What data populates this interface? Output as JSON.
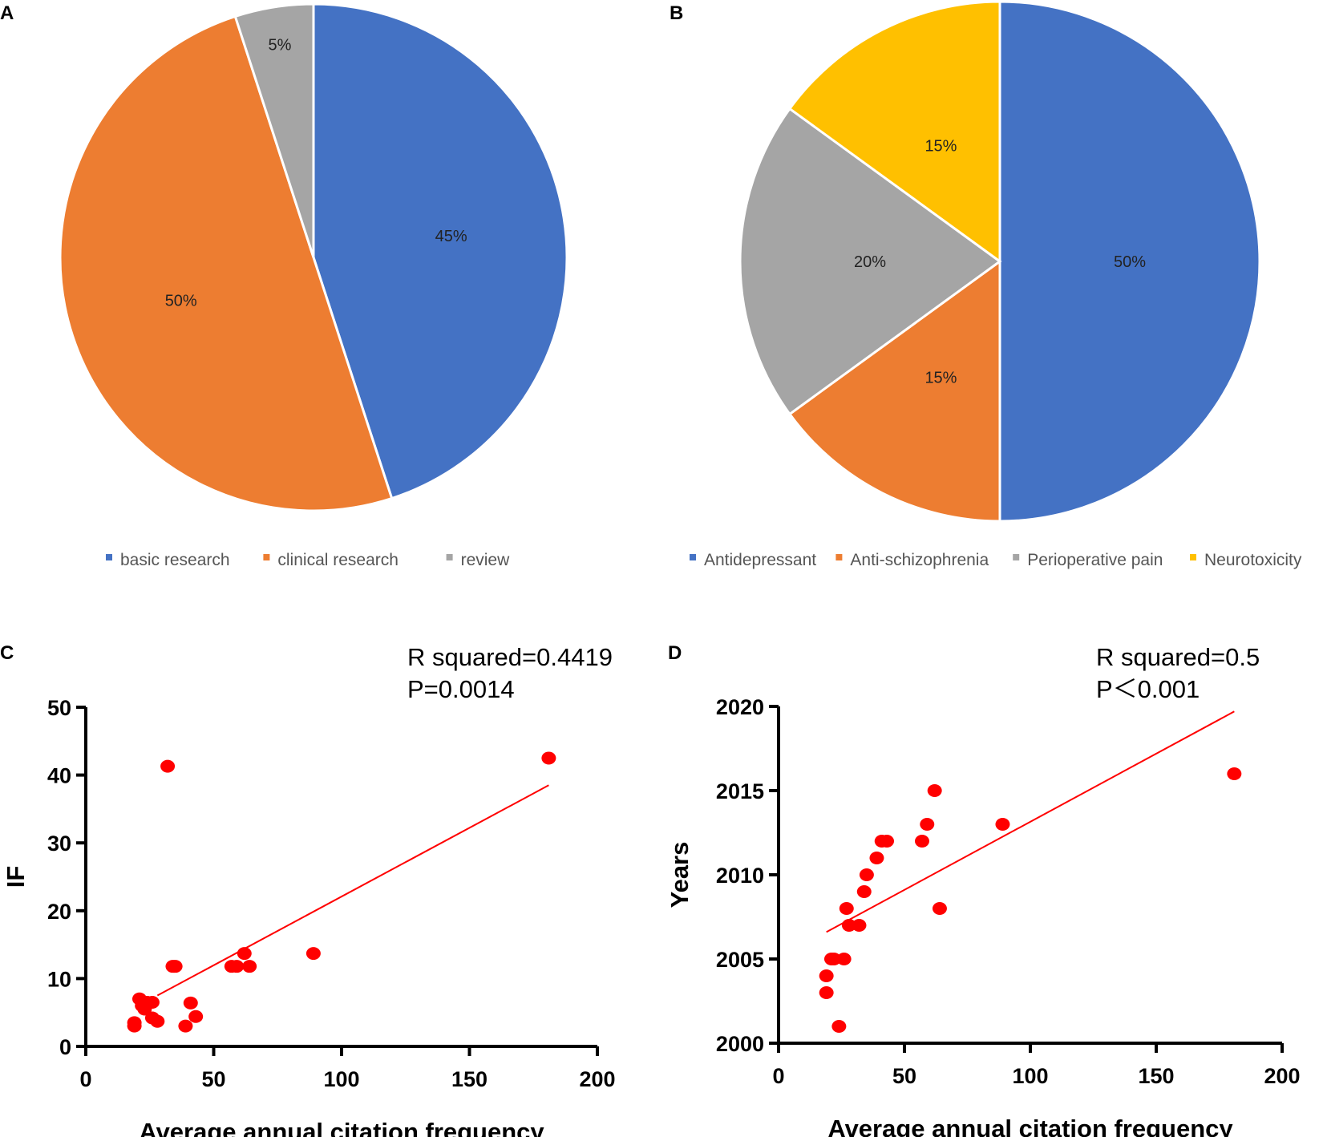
{
  "chart_data": [
    {
      "panel": "A",
      "type": "pie",
      "slices": [
        {
          "label": "basic research",
          "value": 45,
          "text": "45%",
          "color": "#4472C4"
        },
        {
          "label": "clinical research",
          "value": 50,
          "text": "50%",
          "color": "#ED7D31"
        },
        {
          "label": "review",
          "value": 5,
          "text": "5%",
          "color": "#A5A5A5"
        }
      ],
      "legend": "bottom"
    },
    {
      "panel": "B",
      "type": "pie",
      "slices": [
        {
          "label": "Antidepressant",
          "value": 50,
          "text": "50%",
          "color": "#4472C4"
        },
        {
          "label": "Anti-schizophrenia",
          "value": 15,
          "text": "15%",
          "color": "#ED7D31"
        },
        {
          "label": "Perioperative pain",
          "value": 20,
          "text": "20%",
          "color": "#A5A5A5"
        },
        {
          "label": "Neurotoxicity",
          "value": 15,
          "text": "15%",
          "color": "#FFC000"
        }
      ],
      "legend": "bottom"
    },
    {
      "panel": "C",
      "type": "scatter",
      "xlabel": "Average annual citation frequency",
      "ylabel": "IF",
      "xlim": [
        0,
        200
      ],
      "ylim": [
        0,
        50
      ],
      "xticks": [
        "0",
        "50",
        "100",
        "150",
        "200"
      ],
      "yticks": [
        "0",
        "10",
        "20",
        "30",
        "40",
        "50"
      ],
      "annotations": [
        "R squared=0.4419",
        "P=0.0014"
      ],
      "points": [
        [
          19,
          3.5
        ],
        [
          19,
          3
        ],
        [
          21,
          7
        ],
        [
          22,
          6
        ],
        [
          23,
          5.5
        ],
        [
          24,
          6.5
        ],
        [
          26,
          6.5
        ],
        [
          26,
          4.2
        ],
        [
          28,
          3.7
        ],
        [
          32,
          41.3
        ],
        [
          34,
          11.8
        ],
        [
          35,
          11.8
        ],
        [
          39,
          3
        ],
        [
          41,
          6.4
        ],
        [
          43,
          4.4
        ],
        [
          57,
          11.8
        ],
        [
          59,
          11.8
        ],
        [
          62,
          13.7
        ],
        [
          64,
          11.8
        ],
        [
          89,
          13.7
        ],
        [
          181,
          42.5
        ]
      ],
      "fit_line": [
        [
          28,
          7.5
        ],
        [
          181,
          38.5
        ]
      ],
      "color": "#FF0000"
    },
    {
      "panel": "D",
      "type": "scatter",
      "xlabel": "Average annual citation frequency",
      "ylabel": "Years",
      "xlim": [
        0,
        200
      ],
      "ylim": [
        2000,
        2020
      ],
      "xticks": [
        "0",
        "50",
        "100",
        "150",
        "200"
      ],
      "yticks": [
        "2000",
        "2005",
        "2010",
        "2015",
        "2020"
      ],
      "annotations": [
        "R squared=0.5",
        "P＜0.001"
      ],
      "points": [
        [
          19,
          2003
        ],
        [
          19,
          2004
        ],
        [
          21,
          2005
        ],
        [
          22,
          2005
        ],
        [
          24,
          2001
        ],
        [
          26,
          2005
        ],
        [
          27,
          2008
        ],
        [
          28,
          2007
        ],
        [
          32,
          2007
        ],
        [
          34,
          2009
        ],
        [
          35,
          2010
        ],
        [
          39,
          2011
        ],
        [
          41,
          2012
        ],
        [
          43,
          2012
        ],
        [
          57,
          2012
        ],
        [
          59,
          2013
        ],
        [
          62,
          2015
        ],
        [
          64,
          2008
        ],
        [
          89,
          2013
        ],
        [
          181,
          2016
        ]
      ],
      "fit_line": [
        [
          19,
          2006.6
        ],
        [
          181,
          2019.7
        ]
      ],
      "color": "#FF0000"
    }
  ]
}
